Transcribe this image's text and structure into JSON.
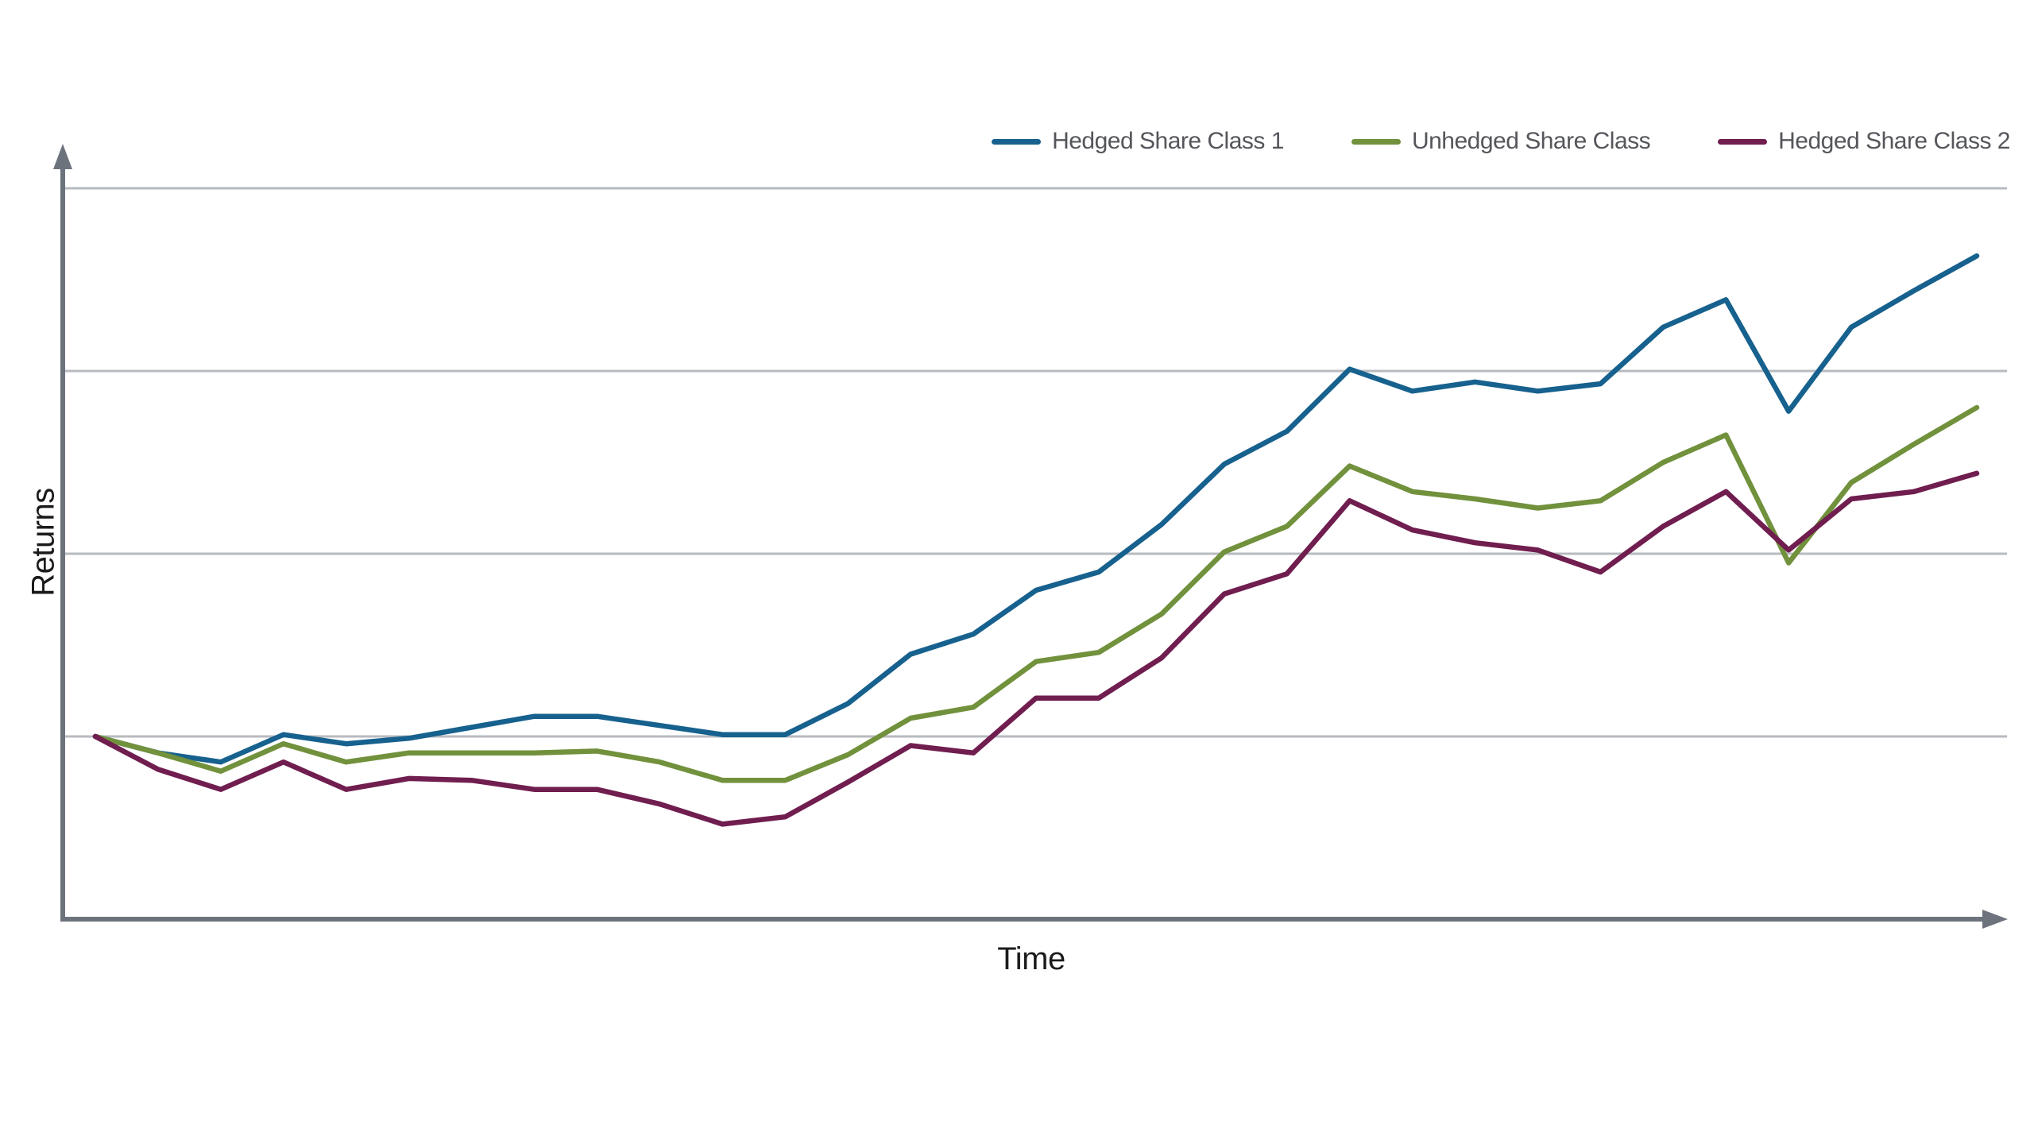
{
  "chart_data": {
    "type": "line",
    "title": "",
    "xlabel": "Time",
    "ylabel": "Returns",
    "x": [
      0,
      1,
      2,
      3,
      4,
      5,
      6,
      7,
      8,
      9,
      10,
      11,
      12,
      13,
      14,
      15,
      16,
      17,
      18,
      19,
      20,
      21,
      22,
      23,
      24,
      25,
      26,
      27,
      28,
      29,
      30
    ],
    "x_tick_labels": "none",
    "y_tick_labels": "none",
    "y_unit": "gridline-spacings above common start value",
    "ylim": [
      -1.0,
      3.25
    ],
    "gridlines_y": [
      0,
      1,
      2,
      3
    ],
    "grid": "horizontal-only",
    "legend_position": "top-right",
    "axes_style": "gray arrows at top of y-axis and right of x-axis",
    "series": [
      {
        "name": "Hedged Share Class 1",
        "color": "#17618e",
        "values": [
          0.0,
          -0.09,
          -0.14,
          0.01,
          -0.04,
          -0.01,
          0.05,
          0.11,
          0.11,
          0.06,
          0.01,
          0.01,
          0.18,
          0.45,
          0.56,
          0.8,
          0.9,
          1.16,
          1.49,
          1.67,
          2.01,
          1.89,
          1.94,
          1.89,
          1.93,
          2.24,
          2.39,
          1.78,
          2.24,
          2.44,
          2.63
        ]
      },
      {
        "name": "Unhedged Share Class",
        "color": "#71913c",
        "values": [
          0.0,
          -0.09,
          -0.19,
          -0.04,
          -0.14,
          -0.09,
          -0.09,
          -0.09,
          -0.08,
          -0.14,
          -0.24,
          -0.24,
          -0.1,
          0.1,
          0.16,
          0.41,
          0.46,
          0.67,
          1.01,
          1.15,
          1.48,
          1.34,
          1.3,
          1.25,
          1.29,
          1.5,
          1.65,
          0.95,
          1.39,
          1.6,
          1.8
        ]
      },
      {
        "name": "Hedged Share Class 2",
        "color": "#701d4f",
        "values": [
          0.0,
          -0.18,
          -0.29,
          -0.14,
          -0.29,
          -0.23,
          -0.24,
          -0.29,
          -0.29,
          -0.37,
          -0.48,
          -0.44,
          -0.25,
          -0.05,
          -0.09,
          0.21,
          0.21,
          0.43,
          0.78,
          0.89,
          1.29,
          1.13,
          1.06,
          1.02,
          0.9,
          1.15,
          1.34,
          1.02,
          1.3,
          1.34,
          1.44
        ]
      }
    ]
  },
  "colors": {
    "axis": "#6d737d",
    "gridline": "#b7bbc0",
    "legend_text": "#54565b",
    "axis_title_text": "#1b1b1d",
    "background": "#ffffff"
  }
}
